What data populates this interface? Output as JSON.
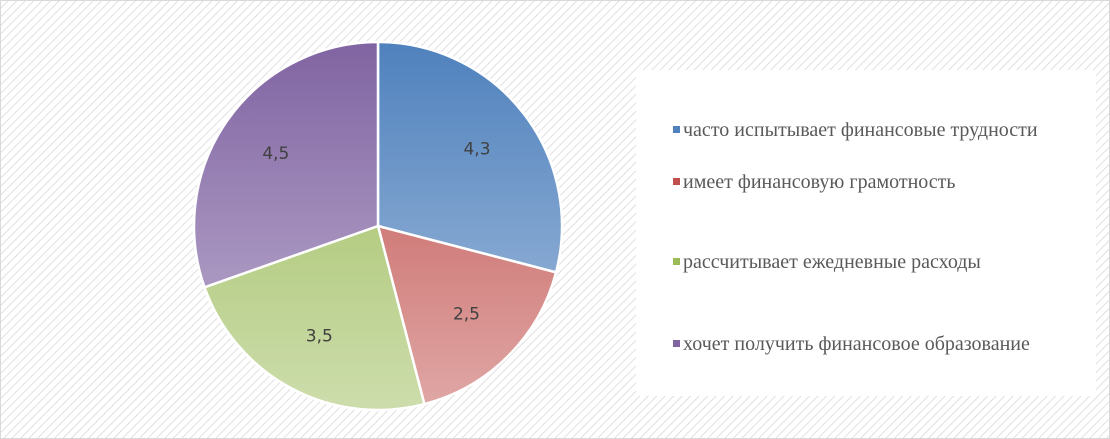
{
  "chart_data": {
    "type": "pie",
    "categories": [
      "часто испытывает финансовые трудности",
      "имеет финансовую грамотность",
      "рассчитывает ежедневные расходы",
      "хочет получить финансовое образование"
    ],
    "values": [
      4.3,
      2.5,
      3.5,
      4.5
    ],
    "value_labels": [
      "4,3",
      "2,5",
      "3,5",
      "4,5"
    ],
    "colors": [
      "#4f81bd",
      "#c0504d",
      "#9bbb59",
      "#8064a2"
    ],
    "legend": "right"
  }
}
